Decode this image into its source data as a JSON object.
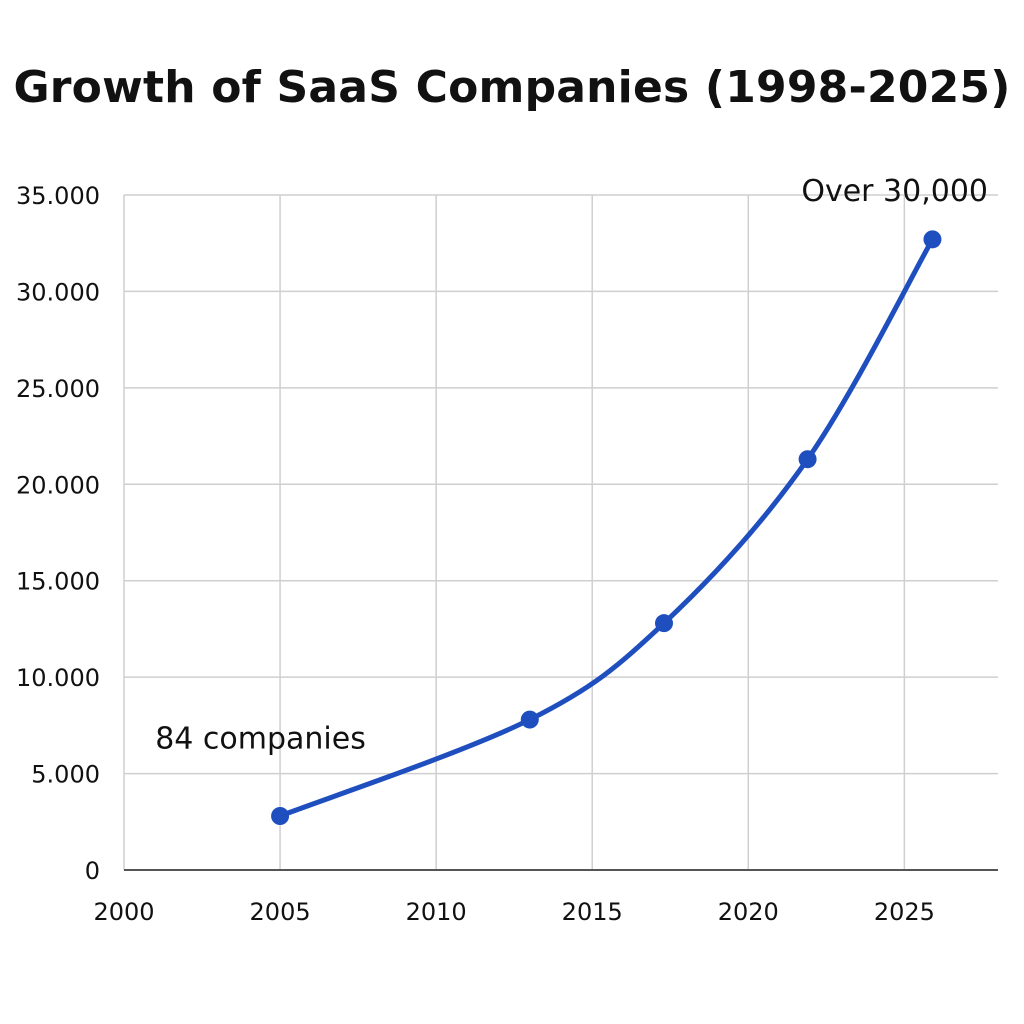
{
  "chart_data": {
    "type": "line",
    "title": "Growth of SaaS Companies (1998-2025)",
    "xlabel": "",
    "ylabel": "",
    "xlim": [
      2000,
      2028
    ],
    "ylim": [
      0,
      35000
    ],
    "x_ticks": [
      2000,
      2005,
      2010,
      2015,
      2020,
      2025
    ],
    "x_tick_labels": [
      "2000",
      "2005",
      "2010",
      "2015",
      "2020",
      "2025"
    ],
    "y_ticks": [
      0,
      5000,
      10000,
      15000,
      20000,
      25000,
      30000,
      35000
    ],
    "y_tick_labels": [
      "0",
      "5.000",
      "10.000",
      "15.000",
      "20.000",
      "25.000",
      "30.000",
      "35.000"
    ],
    "grid": true,
    "series": [
      {
        "color": "#1f4fbf",
        "x": [
          2005,
          2013,
          2017.3,
          2021.9,
          2025.9
        ],
        "y": [
          2800,
          7800,
          12800,
          21300,
          32700
        ]
      }
    ],
    "annotations": [
      {
        "text": "84 companies",
        "x": 2001,
        "y": 6300
      },
      {
        "text": "Over 30,000",
        "x": 2021.7,
        "y": 34700
      }
    ]
  }
}
